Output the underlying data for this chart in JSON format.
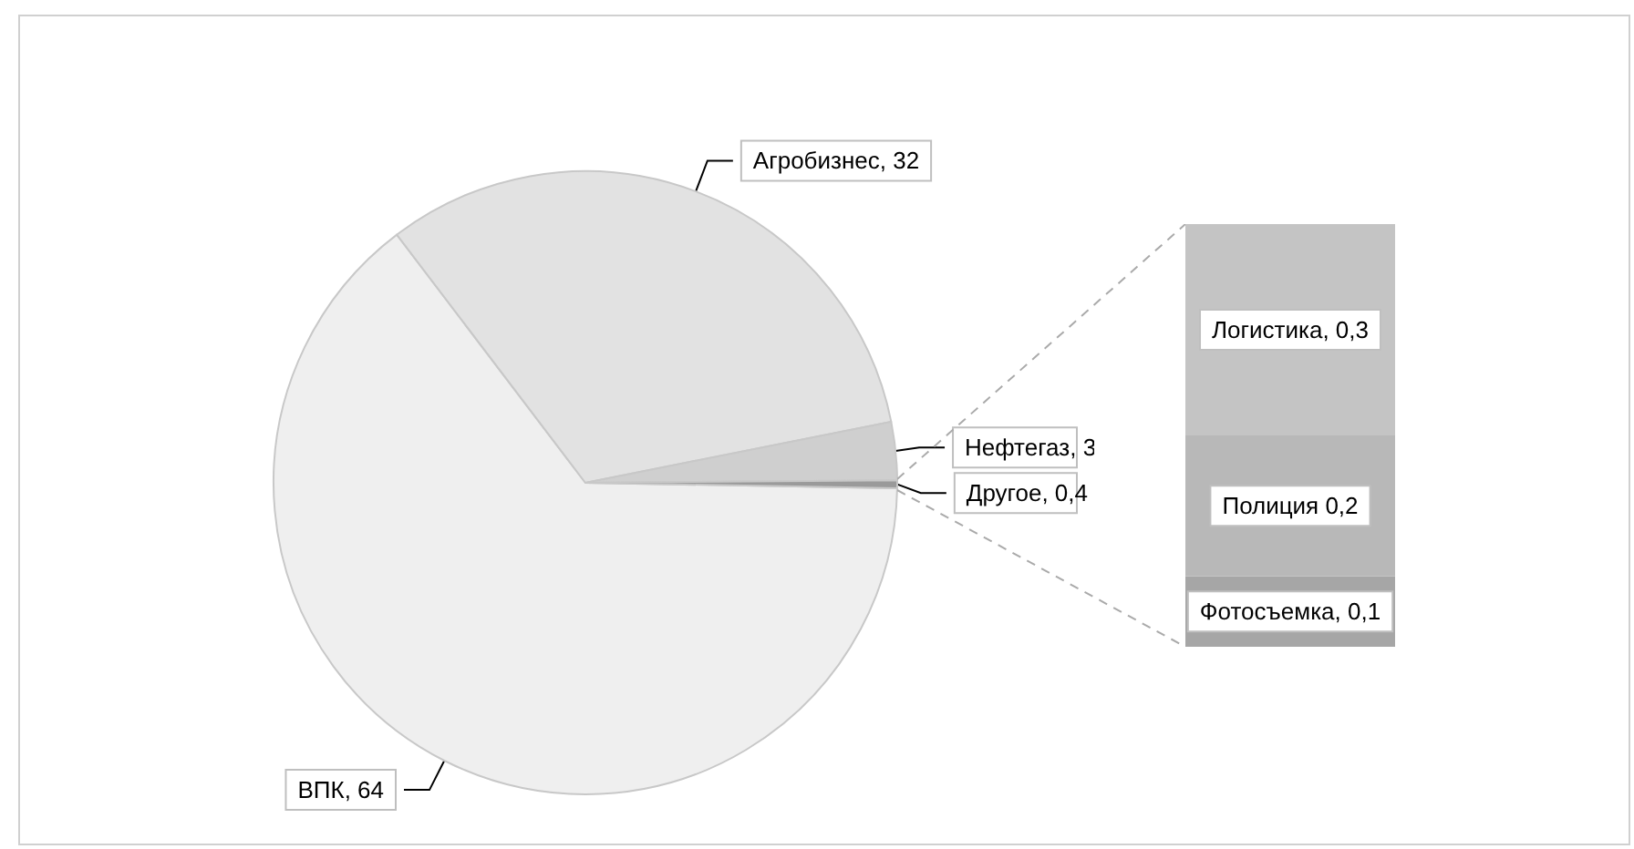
{
  "chart_data": [
    {
      "type": "pie",
      "categories": [
        "ВПК",
        "Агробизнес",
        "Нефтегаз",
        "Другое"
      ],
      "values": [
        64,
        32,
        3,
        0.4
      ],
      "colors": [
        "#efefef",
        "#e2e2e2",
        "#cfcfcf",
        "#9a9a9a"
      ],
      "value_labels": [
        ", 64",
        ", 32",
        ", 3",
        ", 0,4"
      ]
    },
    {
      "type": "bar",
      "stacked": true,
      "categories": [
        null
      ],
      "series": [
        {
          "name": "Фотосъемка",
          "color": "#a6a6a6",
          "values": [
            0.1
          ],
          "value_labels": [
            ", 0,1"
          ]
        },
        {
          "name": "Полиция",
          "color": "#b8b8b8",
          "values": [
            0.2
          ],
          "value_labels": [
            " 0,2"
          ]
        },
        {
          "name": "Логистика",
          "color": "#c4c4c4",
          "values": [
            0.3
          ],
          "value_labels": [
            ", 0,3"
          ]
        }
      ]
    }
  ]
}
